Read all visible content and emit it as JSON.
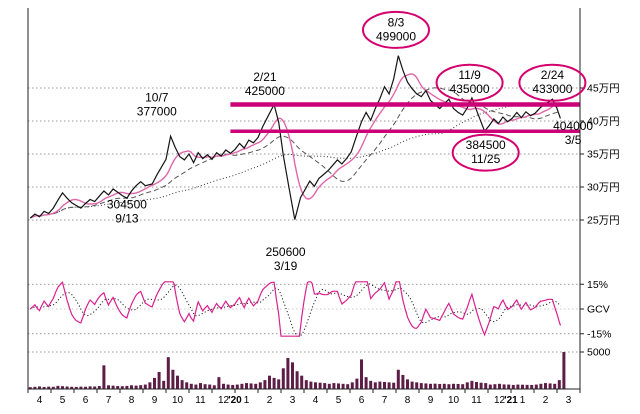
{
  "page": {
    "background": "#ffffff"
  },
  "chart_data": {
    "type": "line",
    "title": "",
    "x_range": [
      0,
      24
    ],
    "x_axis": {
      "month_labels": [
        "4",
        "5",
        "6",
        "7",
        "8",
        "9",
        "10",
        "11",
        "12",
        "1",
        "2",
        "3",
        "4",
        "5",
        "6",
        "7",
        "8",
        "9",
        "10",
        "11",
        "12",
        "1",
        "2",
        "3"
      ],
      "year_labels": [
        {
          "label": "'20",
          "t": 9
        },
        {
          "label": "'21",
          "t": 21
        }
      ]
    },
    "y_axis": {
      "price_ticks": [
        {
          "value": 450000,
          "label": "45万円"
        },
        {
          "value": 400000,
          "label": "40万円"
        },
        {
          "value": 350000,
          "label": "35万円"
        },
        {
          "value": 300000,
          "label": "30万円"
        },
        {
          "value": 250000,
          "label": "25万円"
        }
      ],
      "osc_ticks": [
        {
          "value": 15,
          "label": "15%"
        },
        {
          "value": 0,
          "label": "GCV"
        },
        {
          "value": -15,
          "label": "-15%"
        }
      ],
      "volume_ticks": [
        {
          "value": 5000,
          "label": "5000"
        }
      ]
    },
    "price_series": [
      [
        0.1,
        253000
      ],
      [
        0.3,
        259000
      ],
      [
        0.5,
        255000
      ],
      [
        0.7,
        263000
      ],
      [
        0.9,
        260000
      ],
      [
        1.1,
        268000
      ],
      [
        1.3,
        280000
      ],
      [
        1.5,
        291000
      ],
      [
        1.7,
        283000
      ],
      [
        1.9,
        276000
      ],
      [
        2.1,
        272000
      ],
      [
        2.3,
        268000
      ],
      [
        2.5,
        275000
      ],
      [
        2.7,
        281000
      ],
      [
        2.9,
        278000
      ],
      [
        3.1,
        286000
      ],
      [
        3.3,
        294000
      ],
      [
        3.5,
        288000
      ],
      [
        3.7,
        297000
      ],
      [
        3.9,
        292000
      ],
      [
        4.1,
        287000
      ],
      [
        4.3,
        283000
      ],
      [
        4.5,
        294000
      ],
      [
        4.7,
        302000
      ],
      [
        4.9,
        308000
      ],
      [
        5.1,
        302000
      ],
      [
        5.4,
        304500
      ],
      [
        5.6,
        318000
      ],
      [
        5.8,
        330000
      ],
      [
        6.0,
        342000
      ],
      [
        6.2,
        377000
      ],
      [
        6.4,
        360000
      ],
      [
        6.6,
        346000
      ],
      [
        6.8,
        341000
      ],
      [
        7.0,
        350000
      ],
      [
        7.2,
        337000
      ],
      [
        7.4,
        352000
      ],
      [
        7.6,
        343000
      ],
      [
        7.8,
        349000
      ],
      [
        8.0,
        342000
      ],
      [
        8.2,
        352000
      ],
      [
        8.4,
        347000
      ],
      [
        8.6,
        356000
      ],
      [
        8.8,
        351000
      ],
      [
        9.0,
        357000
      ],
      [
        9.2,
        366000
      ],
      [
        9.4,
        359000
      ],
      [
        9.6,
        371000
      ],
      [
        9.8,
        367000
      ],
      [
        10.0,
        375000
      ],
      [
        10.2,
        391000
      ],
      [
        10.45,
        408000
      ],
      [
        10.7,
        425000
      ],
      [
        10.9,
        398000
      ],
      [
        11.1,
        348000
      ],
      [
        11.35,
        298000
      ],
      [
        11.6,
        250600
      ],
      [
        11.85,
        284000
      ],
      [
        12.05,
        296000
      ],
      [
        12.25,
        309000
      ],
      [
        12.45,
        301000
      ],
      [
        12.65,
        313000
      ],
      [
        12.85,
        319000
      ],
      [
        13.05,
        325000
      ],
      [
        13.25,
        333000
      ],
      [
        13.45,
        341000
      ],
      [
        13.65,
        335000
      ],
      [
        13.85,
        343000
      ],
      [
        14.05,
        353000
      ],
      [
        14.25,
        374000
      ],
      [
        14.5,
        399000
      ],
      [
        14.7,
        413000
      ],
      [
        14.9,
        401000
      ],
      [
        15.1,
        419000
      ],
      [
        15.3,
        434000
      ],
      [
        15.5,
        452000
      ],
      [
        15.7,
        441000
      ],
      [
        15.9,
        464000
      ],
      [
        16.1,
        499000
      ],
      [
        16.3,
        477000
      ],
      [
        16.5,
        459000
      ],
      [
        16.7,
        449000
      ],
      [
        16.9,
        441000
      ],
      [
        17.1,
        437000
      ],
      [
        17.3,
        446000
      ],
      [
        17.5,
        431000
      ],
      [
        17.7,
        425000
      ],
      [
        17.9,
        419000
      ],
      [
        18.1,
        426000
      ],
      [
        18.3,
        433000
      ],
      [
        18.5,
        419000
      ],
      [
        18.7,
        413000
      ],
      [
        18.9,
        409000
      ],
      [
        19.1,
        420000
      ],
      [
        19.3,
        435000
      ],
      [
        19.55,
        412000
      ],
      [
        19.85,
        384500
      ],
      [
        20.05,
        393000
      ],
      [
        20.25,
        403000
      ],
      [
        20.45,
        396000
      ],
      [
        20.65,
        406000
      ],
      [
        20.85,
        399000
      ],
      [
        21.05,
        404000
      ],
      [
        21.25,
        413000
      ],
      [
        21.45,
        405000
      ],
      [
        21.65,
        414000
      ],
      [
        21.85,
        408000
      ],
      [
        22.05,
        412000
      ],
      [
        22.3,
        421000
      ],
      [
        22.6,
        428000
      ],
      [
        22.8,
        433000
      ],
      [
        23.0,
        419000
      ],
      [
        23.15,
        404000
      ]
    ],
    "volume": {
      "t0": 0.1,
      "dt": 0.2,
      "values": [
        250,
        300,
        350,
        280,
        320,
        300,
        420,
        380,
        340,
        300,
        280,
        320,
        300,
        360,
        340,
        400,
        3200,
        500,
        450,
        400,
        380,
        420,
        500,
        460,
        520,
        600,
        900,
        1500,
        2300,
        1100,
        4300,
        2600,
        1800,
        1200,
        900,
        700,
        600,
        800,
        650,
        600,
        500,
        1600,
        700,
        600,
        550,
        600,
        700,
        800,
        750,
        700,
        900,
        1200,
        1800,
        1500,
        1300,
        2800,
        4200,
        3600,
        2400,
        1800,
        1200,
        1000,
        900,
        850,
        800,
        700,
        800,
        750,
        700,
        650,
        900,
        1400,
        4000,
        1600,
        1100,
        900,
        1000,
        950,
        900,
        850,
        2600,
        1900,
        1300,
        1000,
        900,
        800,
        750,
        700,
        720,
        680,
        700,
        650,
        700,
        680,
        650,
        900,
        1100,
        950,
        850,
        800,
        600,
        650,
        700,
        620,
        600,
        550,
        600,
        580,
        560,
        540,
        600,
        700,
        800,
        750,
        700,
        1200,
        5000
      ]
    },
    "levels": [
      {
        "label": "425000",
        "value": 425000,
        "t_start": 8.8,
        "t_end": 24,
        "stroke_width": 4.5
      },
      {
        "label": "384500",
        "value": 384500,
        "t_start": 8.8,
        "t_end": 24,
        "stroke_width": 3.5
      }
    ],
    "annotations": [
      {
        "id": "peak-8-3",
        "lines": [
          "8/3",
          "499000"
        ],
        "t": 16.0,
        "price": 538000,
        "circled": true
      },
      {
        "id": "high-2-21",
        "lines": [
          "2/21",
          "425000"
        ],
        "t": 10.3,
        "price": 455000,
        "circled": false
      },
      {
        "id": "high-10-7",
        "lines": [
          "10/7",
          "377000"
        ],
        "t": 5.6,
        "price": 424000,
        "circled": false
      },
      {
        "id": "low-9-13",
        "lines": [
          "304500",
          "9/13"
        ],
        "t": 4.3,
        "price": 262000,
        "circled": false
      },
      {
        "id": "high-11-9",
        "lines": [
          "11/9",
          "435000"
        ],
        "t": 19.2,
        "price": 458000,
        "circled": true
      },
      {
        "id": "high-2-24",
        "lines": [
          "2/24",
          "433000"
        ],
        "t": 22.8,
        "price": 458000,
        "circled": true
      },
      {
        "id": "close-3-5",
        "lines": [
          "404000",
          "3/5"
        ],
        "t": 23.7,
        "price": 381000,
        "circled": false
      },
      {
        "id": "low-11-25",
        "lines": [
          "384500",
          "11/25"
        ],
        "t": 19.9,
        "price": 352000,
        "circled": true
      },
      {
        "id": "low-3-19",
        "lines": [
          "250600",
          "3/19"
        ],
        "t": 11.2,
        "price": 190000,
        "circled": false
      }
    ],
    "ma_windows": {
      "short": 0.9,
      "mid": 2.6,
      "long": 7
    },
    "osc": {
      "gain": 2.2,
      "clamp": 16.5,
      "smooth": 0.8
    },
    "colors": {
      "price": "#141414",
      "ma_short": "#e066aa",
      "ma_mid": "#555555",
      "ma_long": "#333333",
      "osc_main": "#d8218f",
      "osc_signal": "#222222",
      "level": "#cc0077",
      "circle": "#d4006e",
      "volume": "#5e1d46",
      "grid": "#777777",
      "axis": "#222222",
      "text": "#000000"
    }
  }
}
